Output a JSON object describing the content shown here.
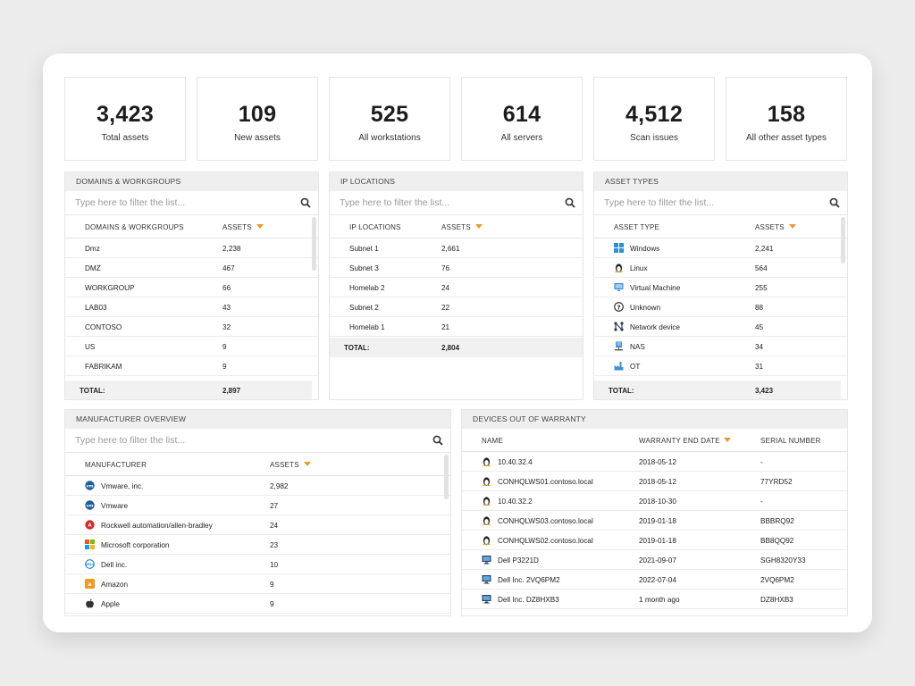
{
  "stats": [
    {
      "value": "3,423",
      "label": "Total assets"
    },
    {
      "value": "109",
      "label": "New assets"
    },
    {
      "value": "525",
      "label": "All workstations"
    },
    {
      "value": "614",
      "label": "All servers"
    },
    {
      "value": "4,512",
      "label": "Scan issues"
    },
    {
      "value": "158",
      "label": "All other asset types"
    }
  ],
  "filter_placeholder": "Type here to filter the list...",
  "domains": {
    "title": "DOMAINS & WORKGROUPS",
    "col1": "DOMAINS & WORKGROUPS",
    "col2": "ASSETS",
    "rows": [
      {
        "name": "Dmz",
        "value": "2,238"
      },
      {
        "name": "DMZ",
        "value": "467"
      },
      {
        "name": "WORKGROUP",
        "value": "66"
      },
      {
        "name": "LAB03",
        "value": "43"
      },
      {
        "name": "CONTOSO",
        "value": "32"
      },
      {
        "name": "US",
        "value": "9"
      },
      {
        "name": "FABRIKAM",
        "value": "9"
      }
    ],
    "total_label": "TOTAL:",
    "total_value": "2,897"
  },
  "ip": {
    "title": "IP LOCATIONS",
    "col1": "IP LOCATIONS",
    "col2": "ASSETS",
    "rows": [
      {
        "name": "Subnet 1",
        "value": "2,661"
      },
      {
        "name": "Subnet 3",
        "value": "76"
      },
      {
        "name": "Homelab 2",
        "value": "24"
      },
      {
        "name": "Subnet 2",
        "value": "22"
      },
      {
        "name": "Homelab 1",
        "value": "21"
      }
    ],
    "total_label": "TOTAL:",
    "total_value": "2,804"
  },
  "types": {
    "title": "ASSET TYPES",
    "col1": "ASSET TYPE",
    "col2": "ASSETS",
    "rows": [
      {
        "icon": "windows-icon",
        "name": "Windows",
        "value": "2,241"
      },
      {
        "icon": "linux-icon",
        "name": "Linux",
        "value": "564"
      },
      {
        "icon": "virtual-machine-icon",
        "name": "Virtual Machine",
        "value": "255"
      },
      {
        "icon": "unknown-icon",
        "name": "Unknown",
        "value": "88"
      },
      {
        "icon": "network-device-icon",
        "name": "Network device",
        "value": "45"
      },
      {
        "icon": "nas-icon",
        "name": "NAS",
        "value": "34"
      },
      {
        "icon": "ot-icon",
        "name": "OT",
        "value": "31"
      }
    ],
    "total_label": "TOTAL:",
    "total_value": "3,423"
  },
  "manufacturer": {
    "title": "MANUFACTURER OVERVIEW",
    "col1": "MANUFACTURER",
    "col2": "ASSETS",
    "rows": [
      {
        "icon": "vmware-icon",
        "name": "Vmware, inc.",
        "value": "2,982"
      },
      {
        "icon": "vmware-icon",
        "name": "Vmware",
        "value": "27"
      },
      {
        "icon": "rockwell-icon",
        "name": "Rockwell automation/allen-bradley",
        "value": "24"
      },
      {
        "icon": "microsoft-icon",
        "name": "Microsoft corporation",
        "value": "23"
      },
      {
        "icon": "dell-icon",
        "name": "Dell inc.",
        "value": "10"
      },
      {
        "icon": "amazon-icon",
        "name": "Amazon",
        "value": "9"
      },
      {
        "icon": "apple-icon",
        "name": "Apple",
        "value": "9"
      }
    ]
  },
  "warranty": {
    "title": "DEVICES OUT OF WARRANTY",
    "col1": "NAME",
    "col2": "WARRANTY END DATE",
    "col3": "SERIAL NUMBER",
    "rows": [
      {
        "icon": "linux-icon",
        "name": "10.40.32.4",
        "date": "2018-05-12",
        "serial": "-"
      },
      {
        "icon": "linux-icon",
        "name": "CONHQLWS01.contoso.local",
        "date": "2018-05-12",
        "serial": "77YRD52"
      },
      {
        "icon": "linux-icon",
        "name": "10.40.32.2",
        "date": "2018-10-30",
        "serial": "-"
      },
      {
        "icon": "linux-icon",
        "name": "CONHQLWS03.contoso.local",
        "date": "2019-01-18",
        "serial": "BBBRQ92"
      },
      {
        "icon": "linux-icon",
        "name": "CONHQLWS02.contoso.local",
        "date": "2019-01-18",
        "serial": "BB8QQ92"
      },
      {
        "icon": "monitor-icon",
        "name": "Dell P3221D",
        "date": "2021-09-07",
        "serial": "SGH8320Y33"
      },
      {
        "icon": "monitor-icon",
        "name": "Dell Inc. 2VQ6PM2",
        "date": "2022-07-04",
        "serial": "2VQ6PM2"
      },
      {
        "icon": "monitor-icon",
        "name": "Dell Inc. DZ8HXB3",
        "date": "1 month ago",
        "serial": "DZ8HXB3"
      }
    ]
  },
  "colors": {
    "accent": "#e89b2c",
    "header_bg": "#efefef",
    "frame_bg": "#ffffff",
    "page_bg": "#ececec"
  }
}
